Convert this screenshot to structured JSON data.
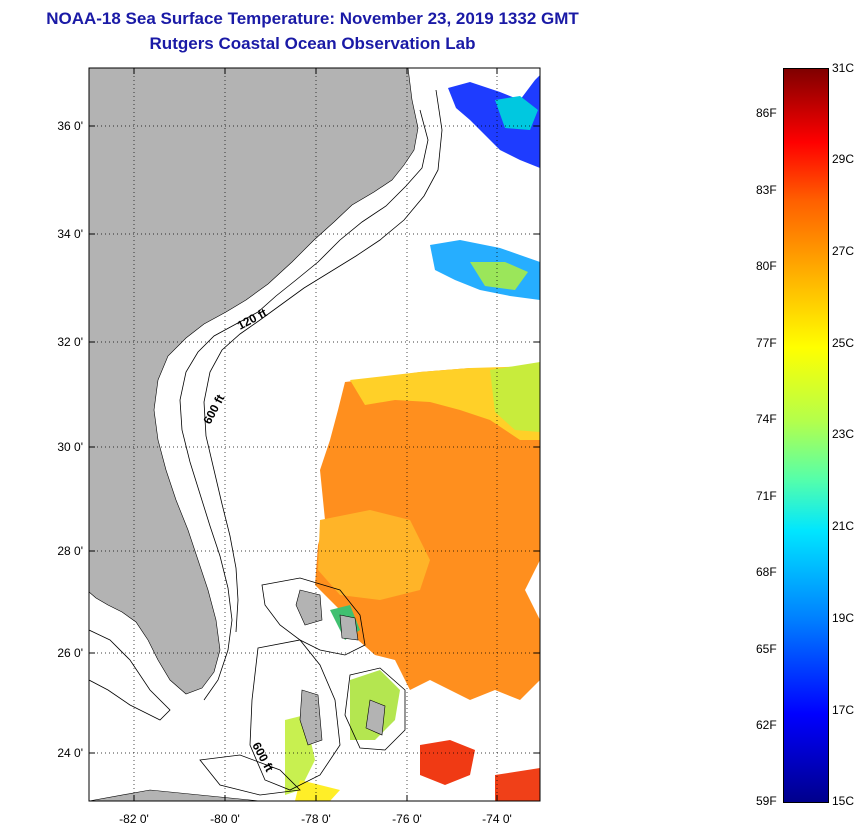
{
  "header": {
    "title": "NOAA-18 Sea Surface Temperature:  November 23, 2019 1332 GMT",
    "subtitle": "Rutgers Coastal Ocean Observation Lab"
  },
  "map": {
    "lat_labels": [
      "36 0'",
      "34 0'",
      "32 0'",
      "30 0'",
      "28 0'",
      "26 0'",
      "24 0'"
    ],
    "lon_labels": [
      "-82 0'",
      "-80 0'",
      "-78 0'",
      "-76 0'",
      "-74 0'"
    ],
    "contour_labels": [
      "120 ft",
      "600 ft",
      "600 ft"
    ],
    "colors": {
      "land": "#b3b3b3",
      "ocean": "#ffffff",
      "sst_warm": "#ff8c1a",
      "sst_mild": "#ffd23c",
      "sst_cool": "#0030ff"
    }
  },
  "colorbar": {
    "celsius_labels": [
      "31C",
      "29C",
      "27C",
      "25C",
      "23C",
      "21C",
      "19C",
      "17C",
      "15C"
    ],
    "fahrenheit_labels": [
      "86F",
      "83F",
      "80F",
      "77F",
      "74F",
      "71F",
      "68F",
      "65F",
      "62F",
      "59F"
    ],
    "range_c": [
      15,
      31
    ]
  }
}
